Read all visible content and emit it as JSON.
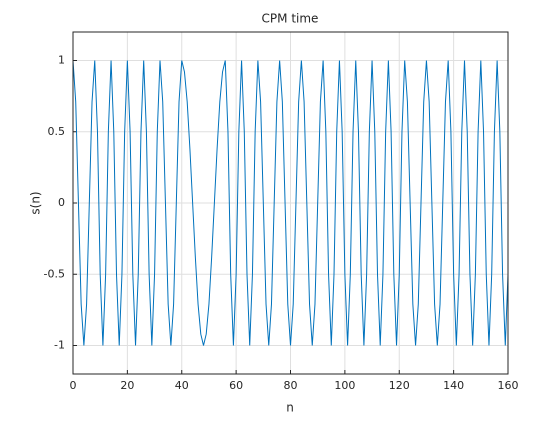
{
  "chart_data": {
    "type": "line",
    "title": "CPM time",
    "x_label": "n",
    "y_label": "s(n)",
    "x": [
      0,
      1,
      2,
      3,
      4,
      5,
      6,
      7,
      8,
      9,
      10,
      11,
      12,
      13,
      14,
      15,
      16,
      17,
      18,
      19,
      20,
      21,
      22,
      23,
      24,
      25,
      26,
      27,
      28,
      29,
      30,
      31,
      32,
      33,
      34,
      35,
      36,
      37,
      38,
      39,
      40,
      41,
      42,
      43,
      44,
      45,
      46,
      47,
      48,
      49,
      50,
      51,
      52,
      53,
      54,
      55,
      56,
      57,
      58,
      59,
      60,
      61,
      62,
      63,
      64,
      65,
      66,
      67,
      68,
      69,
      70,
      71,
      72,
      73,
      74,
      75,
      76,
      77,
      78,
      79,
      80,
      81,
      82,
      83,
      84,
      85,
      86,
      87,
      88,
      89,
      90,
      91,
      92,
      93,
      94,
      95,
      96,
      97,
      98,
      99,
      100,
      101,
      102,
      103,
      104,
      105,
      106,
      107,
      108,
      109,
      110,
      111,
      112,
      113,
      114,
      115,
      116,
      117,
      118,
      119,
      120,
      121,
      122,
      123,
      124,
      125,
      126,
      127,
      128,
      129,
      130,
      131,
      132,
      133,
      134,
      135,
      136,
      137,
      138,
      139,
      140,
      141,
      142,
      143,
      144,
      145,
      146,
      147,
      148,
      149,
      150,
      151,
      152,
      153,
      154,
      155,
      156,
      157,
      158,
      159,
      160
    ],
    "series": [
      {
        "name": "s(n)",
        "color": "#0072bd",
        "values": [
          1,
          0.71,
          0,
          -0.71,
          -1,
          -0.71,
          0,
          0.71,
          1,
          0.5,
          -0.5,
          -1,
          -0.5,
          0.5,
          1,
          0.5,
          -0.5,
          -1,
          -0.5,
          0.5,
          1,
          0.5,
          -0.5,
          -1,
          -0.5,
          0.5,
          1,
          0.5,
          -0.5,
          -1,
          -0.5,
          0.5,
          1,
          0.71,
          0,
          -0.71,
          -1,
          -0.71,
          0,
          0.71,
          1,
          0.92,
          0.71,
          0.38,
          0,
          -0.38,
          -0.71,
          -0.92,
          -1,
          -0.92,
          -0.71,
          -0.38,
          0,
          0.38,
          0.71,
          0.92,
          1,
          0.5,
          -0.5,
          -1,
          -0.5,
          0.5,
          1,
          0.5,
          -0.5,
          -1,
          -0.5,
          0.5,
          1,
          0.71,
          0,
          -0.71,
          -1,
          -0.71,
          0,
          0.71,
          1,
          0.71,
          0,
          -0.71,
          -1,
          -0.71,
          0,
          0.71,
          1,
          0.71,
          0,
          -0.71,
          -1,
          -0.71,
          0,
          0.71,
          1,
          0.5,
          -0.5,
          -1,
          -0.5,
          0.5,
          1,
          0.5,
          -0.5,
          -1,
          -0.5,
          0.5,
          1,
          0.5,
          -0.5,
          -1,
          -0.5,
          0.5,
          1,
          0.5,
          -0.5,
          -1,
          -0.5,
          0.5,
          1,
          0.5,
          -0.5,
          -1,
          -0.5,
          0.5,
          1,
          0.71,
          0,
          -0.71,
          -1,
          -0.71,
          0,
          0.71,
          1,
          0.71,
          0,
          -0.71,
          -1,
          -0.71,
          0,
          0.71,
          1,
          0.5,
          -0.5,
          -1,
          -0.5,
          0.5,
          1,
          0.5,
          -0.5,
          -1,
          -0.5,
          0.5,
          1,
          0.5,
          -0.5,
          -1,
          -0.5,
          0.5,
          1,
          0.5,
          -0.5,
          -1,
          -0.5
        ]
      }
    ],
    "xlim": [
      0,
      160
    ],
    "xticks": [
      0,
      20,
      40,
      60,
      80,
      100,
      120,
      140,
      160
    ],
    "ylim": [
      -1.2,
      1.2
    ],
    "yticks": [
      -1,
      -0.5,
      0,
      0.5,
      1
    ],
    "grid": true
  }
}
